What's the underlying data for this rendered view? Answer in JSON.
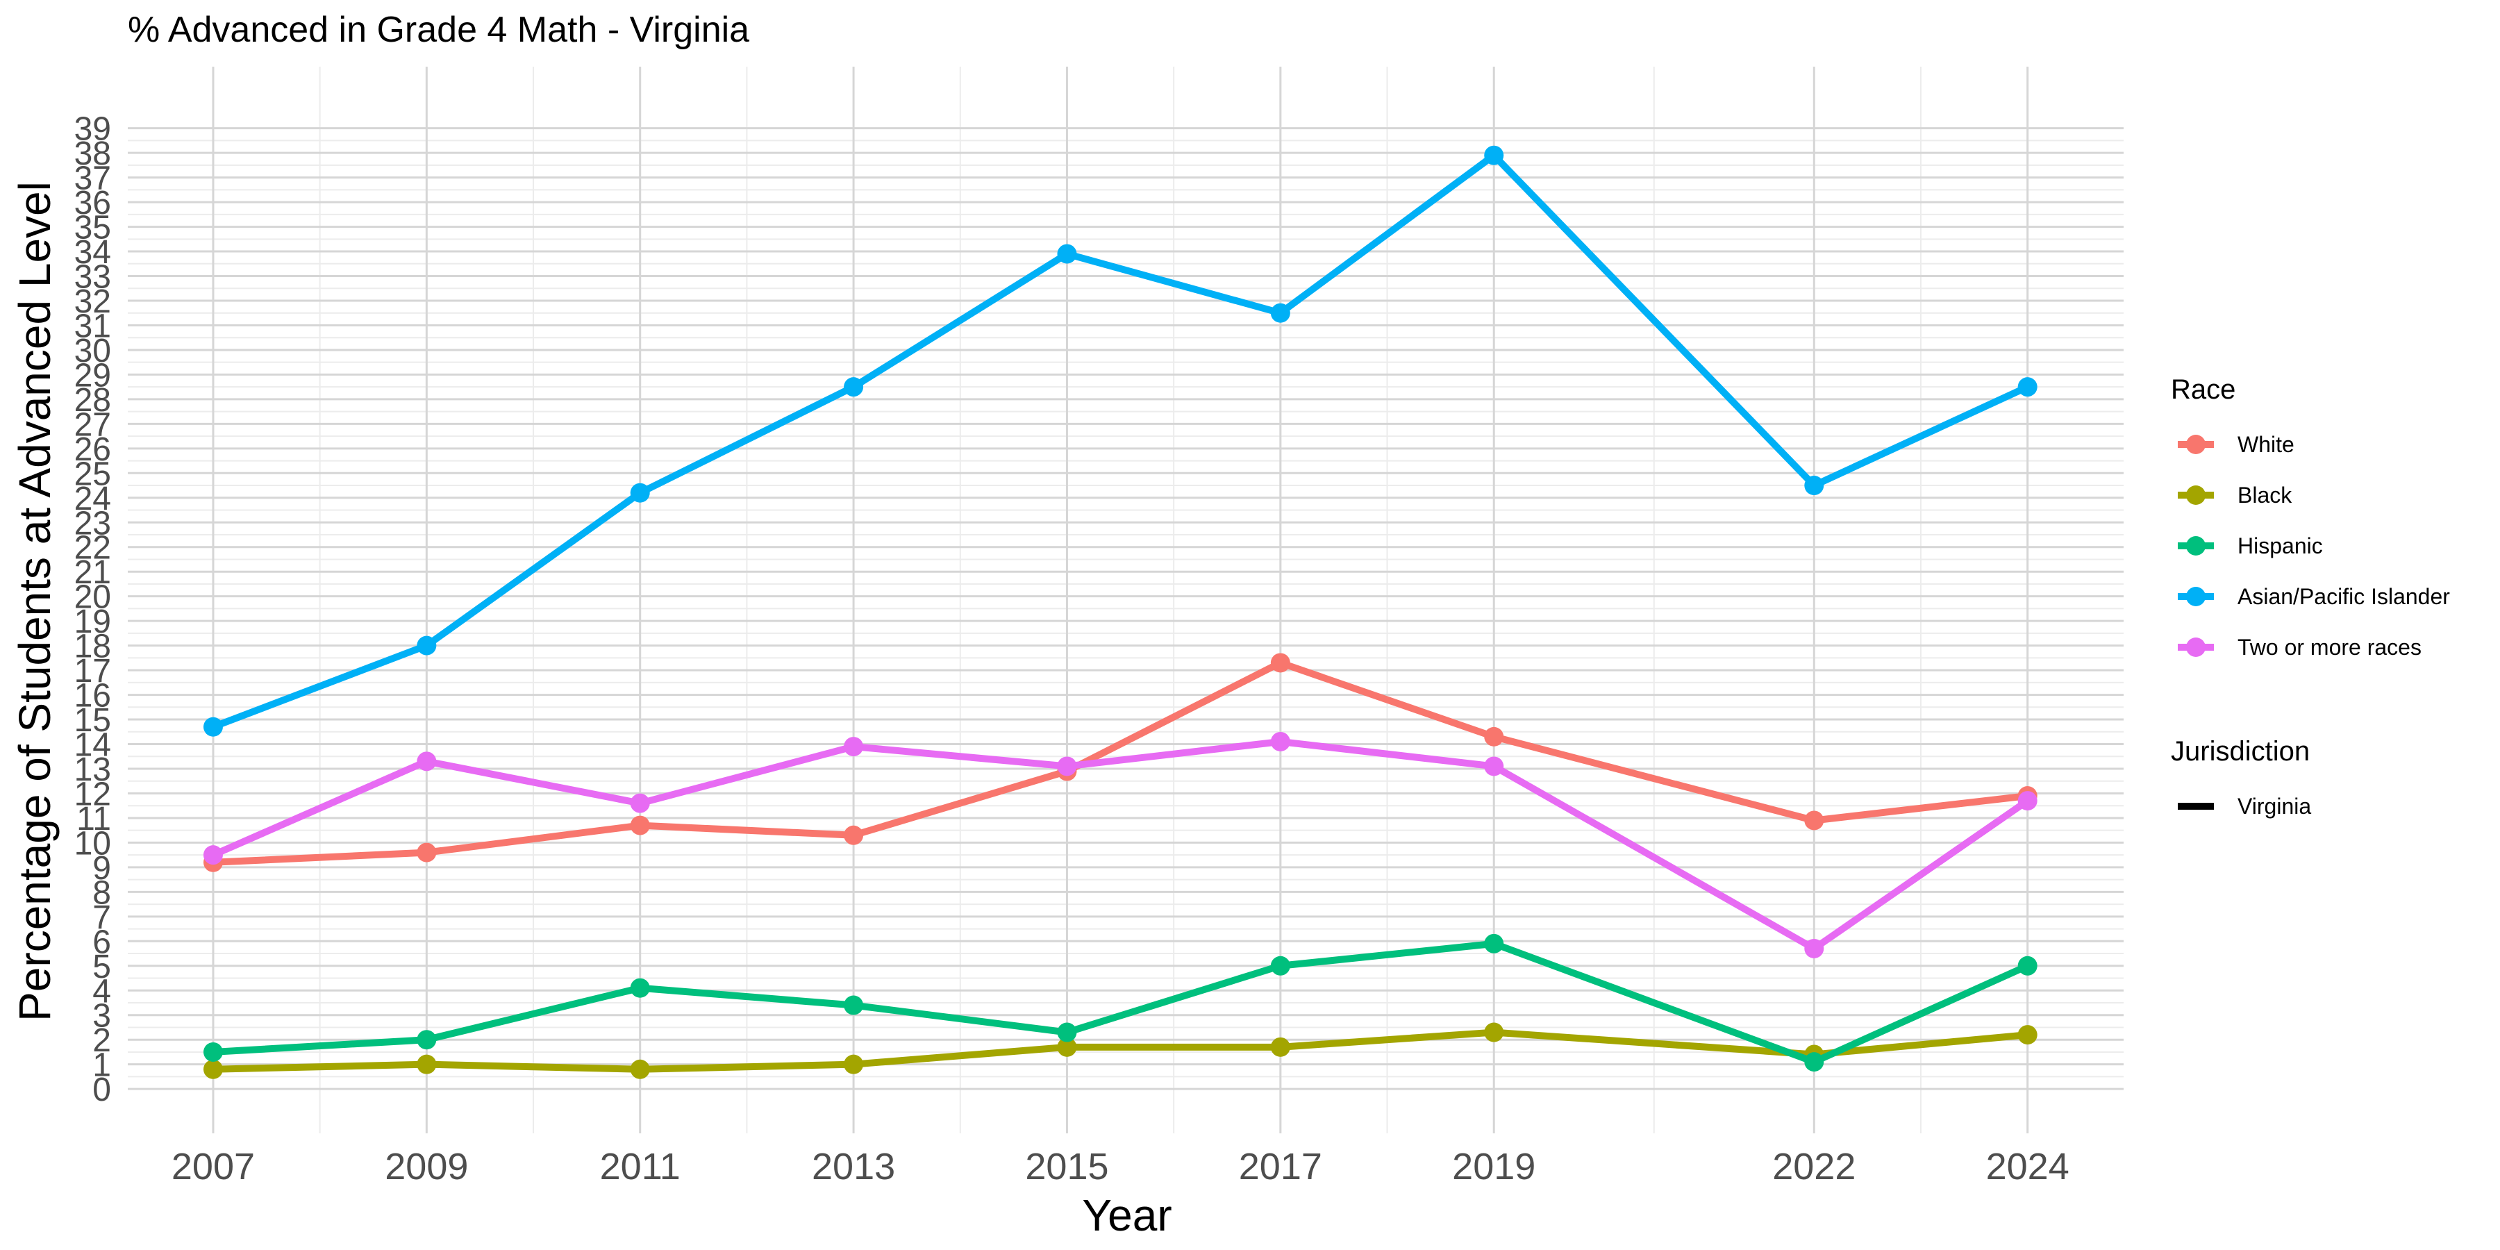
{
  "chart_data": {
    "type": "line",
    "title": "% Advanced in Grade 4 Math - Virginia",
    "xlabel": "Year",
    "ylabel": "Percentage of Students at Advanced Level",
    "x": [
      2007,
      2009,
      2011,
      2013,
      2015,
      2017,
      2019,
      2022,
      2024
    ],
    "x_tick_labels": [
      "2007",
      "2009",
      "2011",
      "2013",
      "2015",
      "2017",
      "2019",
      "2022",
      "2024"
    ],
    "y_tick_labels": [
      "0",
      "1",
      "2",
      "3",
      "4",
      "5",
      "6",
      "7",
      "8",
      "9",
      "10",
      "11",
      "12",
      "13",
      "14",
      "15",
      "16",
      "17",
      "18",
      "19",
      "20",
      "21",
      "22",
      "23",
      "24",
      "25",
      "26",
      "27",
      "28",
      "29",
      "30",
      "31",
      "32",
      "33",
      "34",
      "35",
      "36",
      "37",
      "38",
      "39"
    ],
    "xlim": [
      2006.2,
      2024.9
    ],
    "ylim": [
      -1.8,
      41.5
    ],
    "grid": true,
    "legend_placement": "right",
    "series": [
      {
        "name": "White",
        "color": "#F8766D",
        "values": [
          9.2,
          9.6,
          10.7,
          10.3,
          12.9,
          17.3,
          14.3,
          10.9,
          11.9
        ]
      },
      {
        "name": "Black",
        "color": "#A3A500",
        "values": [
          0.8,
          1.0,
          0.8,
          1.0,
          1.7,
          1.7,
          2.3,
          1.4,
          2.2
        ]
      },
      {
        "name": "Hispanic",
        "color": "#00BF7D",
        "values": [
          1.5,
          2.0,
          4.1,
          3.4,
          2.3,
          5.0,
          5.9,
          1.1,
          5.0
        ]
      },
      {
        "name": "Asian/Pacific Islander",
        "color": "#00B0F6",
        "values": [
          14.7,
          18.0,
          24.2,
          28.5,
          33.9,
          31.5,
          37.9,
          24.5,
          28.5
        ]
      },
      {
        "name": "Two or more races",
        "color": "#E76BF3",
        "values": [
          9.5,
          13.3,
          11.6,
          13.9,
          13.1,
          14.1,
          13.1,
          5.7,
          11.7
        ]
      }
    ],
    "legend": [
      {
        "title": "Race",
        "entries": [
          "White",
          "Black",
          "Hispanic",
          "Asian/Pacific Islander",
          "Two or more races"
        ]
      },
      {
        "title": "Jurisdiction",
        "entries": [
          "Virginia"
        ]
      }
    ]
  }
}
